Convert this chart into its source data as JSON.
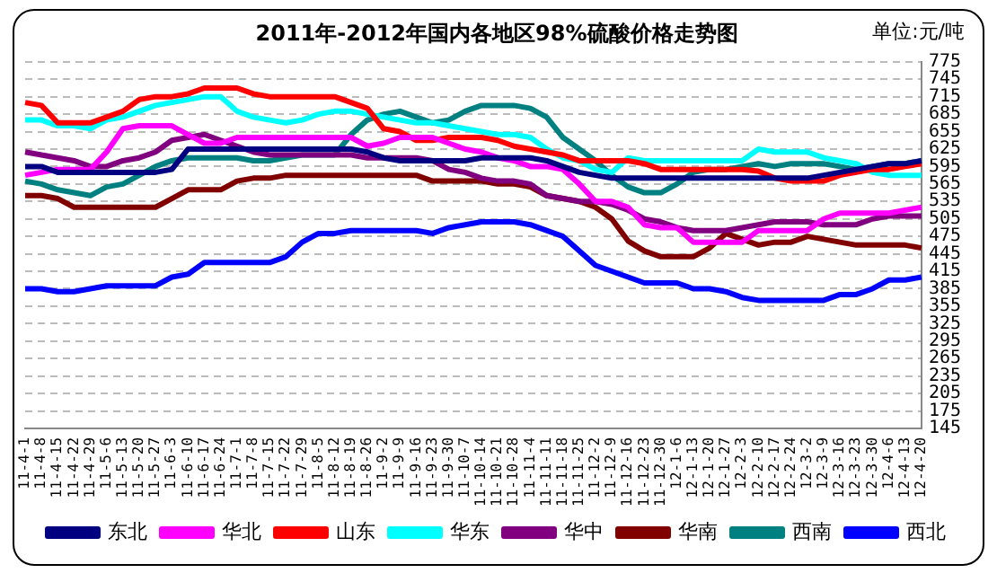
{
  "chart_data": {
    "type": "line",
    "title": "2011年-2012年国内各地区98%硫酸价格走势图",
    "annotations": [
      "单位:元/吨"
    ],
    "categories": [
      "11-4-1",
      "11-4-8",
      "11-4-15",
      "11-4-22",
      "11-4-29",
      "11-5-6",
      "11-5-13",
      "11-5-20",
      "11-5-27",
      "11-6-3",
      "11-6-10",
      "11-6-17",
      "11-6-24",
      "11-7-1",
      "11-7-8",
      "11-7-15",
      "11-7-22",
      "11-7-29",
      "11-8-5",
      "11-8-12",
      "11-8-19",
      "11-8-26",
      "11-9-2",
      "11-9-9",
      "11-9-16",
      "11-9-23",
      "11-9-30",
      "11-10-7",
      "11-10-14",
      "11-10-21",
      "11-10-28",
      "11-11-4",
      "11-11-11",
      "11-11-18",
      "11-11-25",
      "11-12-2",
      "11-12-9",
      "11-12-16",
      "11-12-23",
      "11-12-30",
      "12-1-6",
      "12-1-13",
      "12-1-20",
      "12-1-27",
      "12-2-3",
      "12-2-10",
      "12-2-17",
      "12-2-24",
      "12-3-2",
      "12-3-9",
      "12-3-16",
      "12-3-23",
      "12-3-30",
      "12-4-6",
      "12-4-13",
      "12-4-20"
    ],
    "series": [
      {
        "name": "东北",
        "color": "#000080",
        "values": [
          595,
          595,
          585,
          585,
          585,
          585,
          585,
          585,
          585,
          590,
          625,
          625,
          625,
          625,
          625,
          625,
          625,
          625,
          625,
          625,
          625,
          620,
          610,
          605,
          605,
          605,
          605,
          605,
          610,
          610,
          610,
          610,
          605,
          595,
          585,
          580,
          575,
          575,
          575,
          575,
          575,
          575,
          575,
          575,
          575,
          575,
          575,
          575,
          575,
          580,
          585,
          590,
          595,
          600,
          600,
          605
        ]
      },
      {
        "name": "华北",
        "color": "#ff00ff",
        "values": [
          580,
          585,
          590,
          590,
          590,
          620,
          660,
          665,
          665,
          665,
          650,
          635,
          635,
          645,
          645,
          645,
          645,
          645,
          645,
          645,
          645,
          630,
          635,
          645,
          645,
          645,
          635,
          625,
          620,
          610,
          605,
          595,
          595,
          590,
          565,
          535,
          535,
          525,
          495,
          490,
          490,
          465,
          465,
          465,
          465,
          485,
          485,
          485,
          485,
          505,
          515,
          515,
          515,
          515,
          520,
          525
        ]
      },
      {
        "name": "山东",
        "color": "#ff0000",
        "values": [
          705,
          700,
          670,
          670,
          670,
          680,
          690,
          710,
          715,
          715,
          720,
          730,
          730,
          730,
          720,
          715,
          715,
          715,
          715,
          715,
          705,
          695,
          660,
          655,
          640,
          640,
          645,
          645,
          645,
          640,
          630,
          625,
          620,
          615,
          605,
          605,
          605,
          605,
          600,
          590,
          590,
          590,
          590,
          590,
          590,
          587,
          575,
          570,
          570,
          570,
          580,
          585,
          590,
          590,
          595,
          600
        ]
      },
      {
        "name": "华东",
        "color": "#00ffff",
        "values": [
          675,
          675,
          665,
          665,
          660,
          675,
          680,
          690,
          700,
          705,
          710,
          715,
          715,
          690,
          680,
          675,
          670,
          675,
          685,
          690,
          690,
          685,
          680,
          675,
          670,
          670,
          665,
          660,
          655,
          650,
          650,
          645,
          625,
          610,
          605,
          590,
          585,
          610,
          605,
          605,
          605,
          605,
          605,
          605,
          605,
          625,
          620,
          620,
          620,
          610,
          605,
          600,
          585,
          580,
          580,
          580
        ]
      },
      {
        "name": "华中",
        "color": "#800080",
        "values": [
          620,
          615,
          610,
          605,
          595,
          595,
          605,
          610,
          620,
          640,
          645,
          650,
          640,
          630,
          620,
          615,
          615,
          615,
          615,
          615,
          615,
          610,
          610,
          610,
          610,
          605,
          590,
          585,
          575,
          570,
          570,
          565,
          545,
          540,
          535,
          535,
          530,
          520,
          505,
          500,
          490,
          485,
          485,
          485,
          490,
          495,
          500,
          500,
          500,
          495,
          495,
          495,
          505,
          510,
          510,
          510
        ]
      },
      {
        "name": "华南",
        "color": "#800000",
        "values": [
          545,
          545,
          540,
          525,
          525,
          525,
          525,
          525,
          525,
          540,
          555,
          555,
          555,
          570,
          575,
          575,
          580,
          580,
          580,
          580,
          580,
          580,
          580,
          580,
          580,
          570,
          570,
          570,
          570,
          565,
          565,
          560,
          545,
          540,
          535,
          525,
          505,
          467,
          450,
          440,
          440,
          440,
          455,
          480,
          470,
          460,
          465,
          465,
          475,
          470,
          465,
          460,
          460,
          460,
          460,
          455
        ]
      },
      {
        "name": "西南",
        "color": "#008080",
        "values": [
          570,
          565,
          555,
          550,
          545,
          560,
          565,
          580,
          595,
          605,
          610,
          610,
          610,
          610,
          605,
          605,
          610,
          615,
          615,
          615,
          650,
          675,
          685,
          690,
          680,
          670,
          675,
          690,
          700,
          700,
          700,
          695,
          680,
          645,
          625,
          605,
          580,
          560,
          550,
          550,
          565,
          585,
          590,
          590,
          595,
          600,
          595,
          600,
          600,
          600,
          595,
          590,
          595,
          600,
          600,
          605
        ]
      },
      {
        "name": "西北",
        "color": "#0000ff",
        "values": [
          385,
          385,
          380,
          380,
          385,
          390,
          390,
          390,
          390,
          405,
          410,
          430,
          430,
          430,
          430,
          430,
          440,
          465,
          480,
          480,
          485,
          485,
          485,
          485,
          485,
          480,
          490,
          495,
          500,
          500,
          500,
          495,
          485,
          475,
          450,
          425,
          415,
          405,
          395,
          395,
          395,
          385,
          385,
          380,
          370,
          365,
          365,
          365,
          365,
          365,
          375,
          375,
          385,
          400,
          400,
          405
        ]
      }
    ],
    "ylim": [
      145,
      775
    ],
    "yticks": [
      145,
      175,
      205,
      235,
      265,
      295,
      325,
      355,
      385,
      415,
      445,
      475,
      505,
      535,
      565,
      595,
      625,
      655,
      685,
      715,
      745,
      775
    ],
    "grid": "y",
    "legend": "bottom",
    "marker": "none"
  }
}
